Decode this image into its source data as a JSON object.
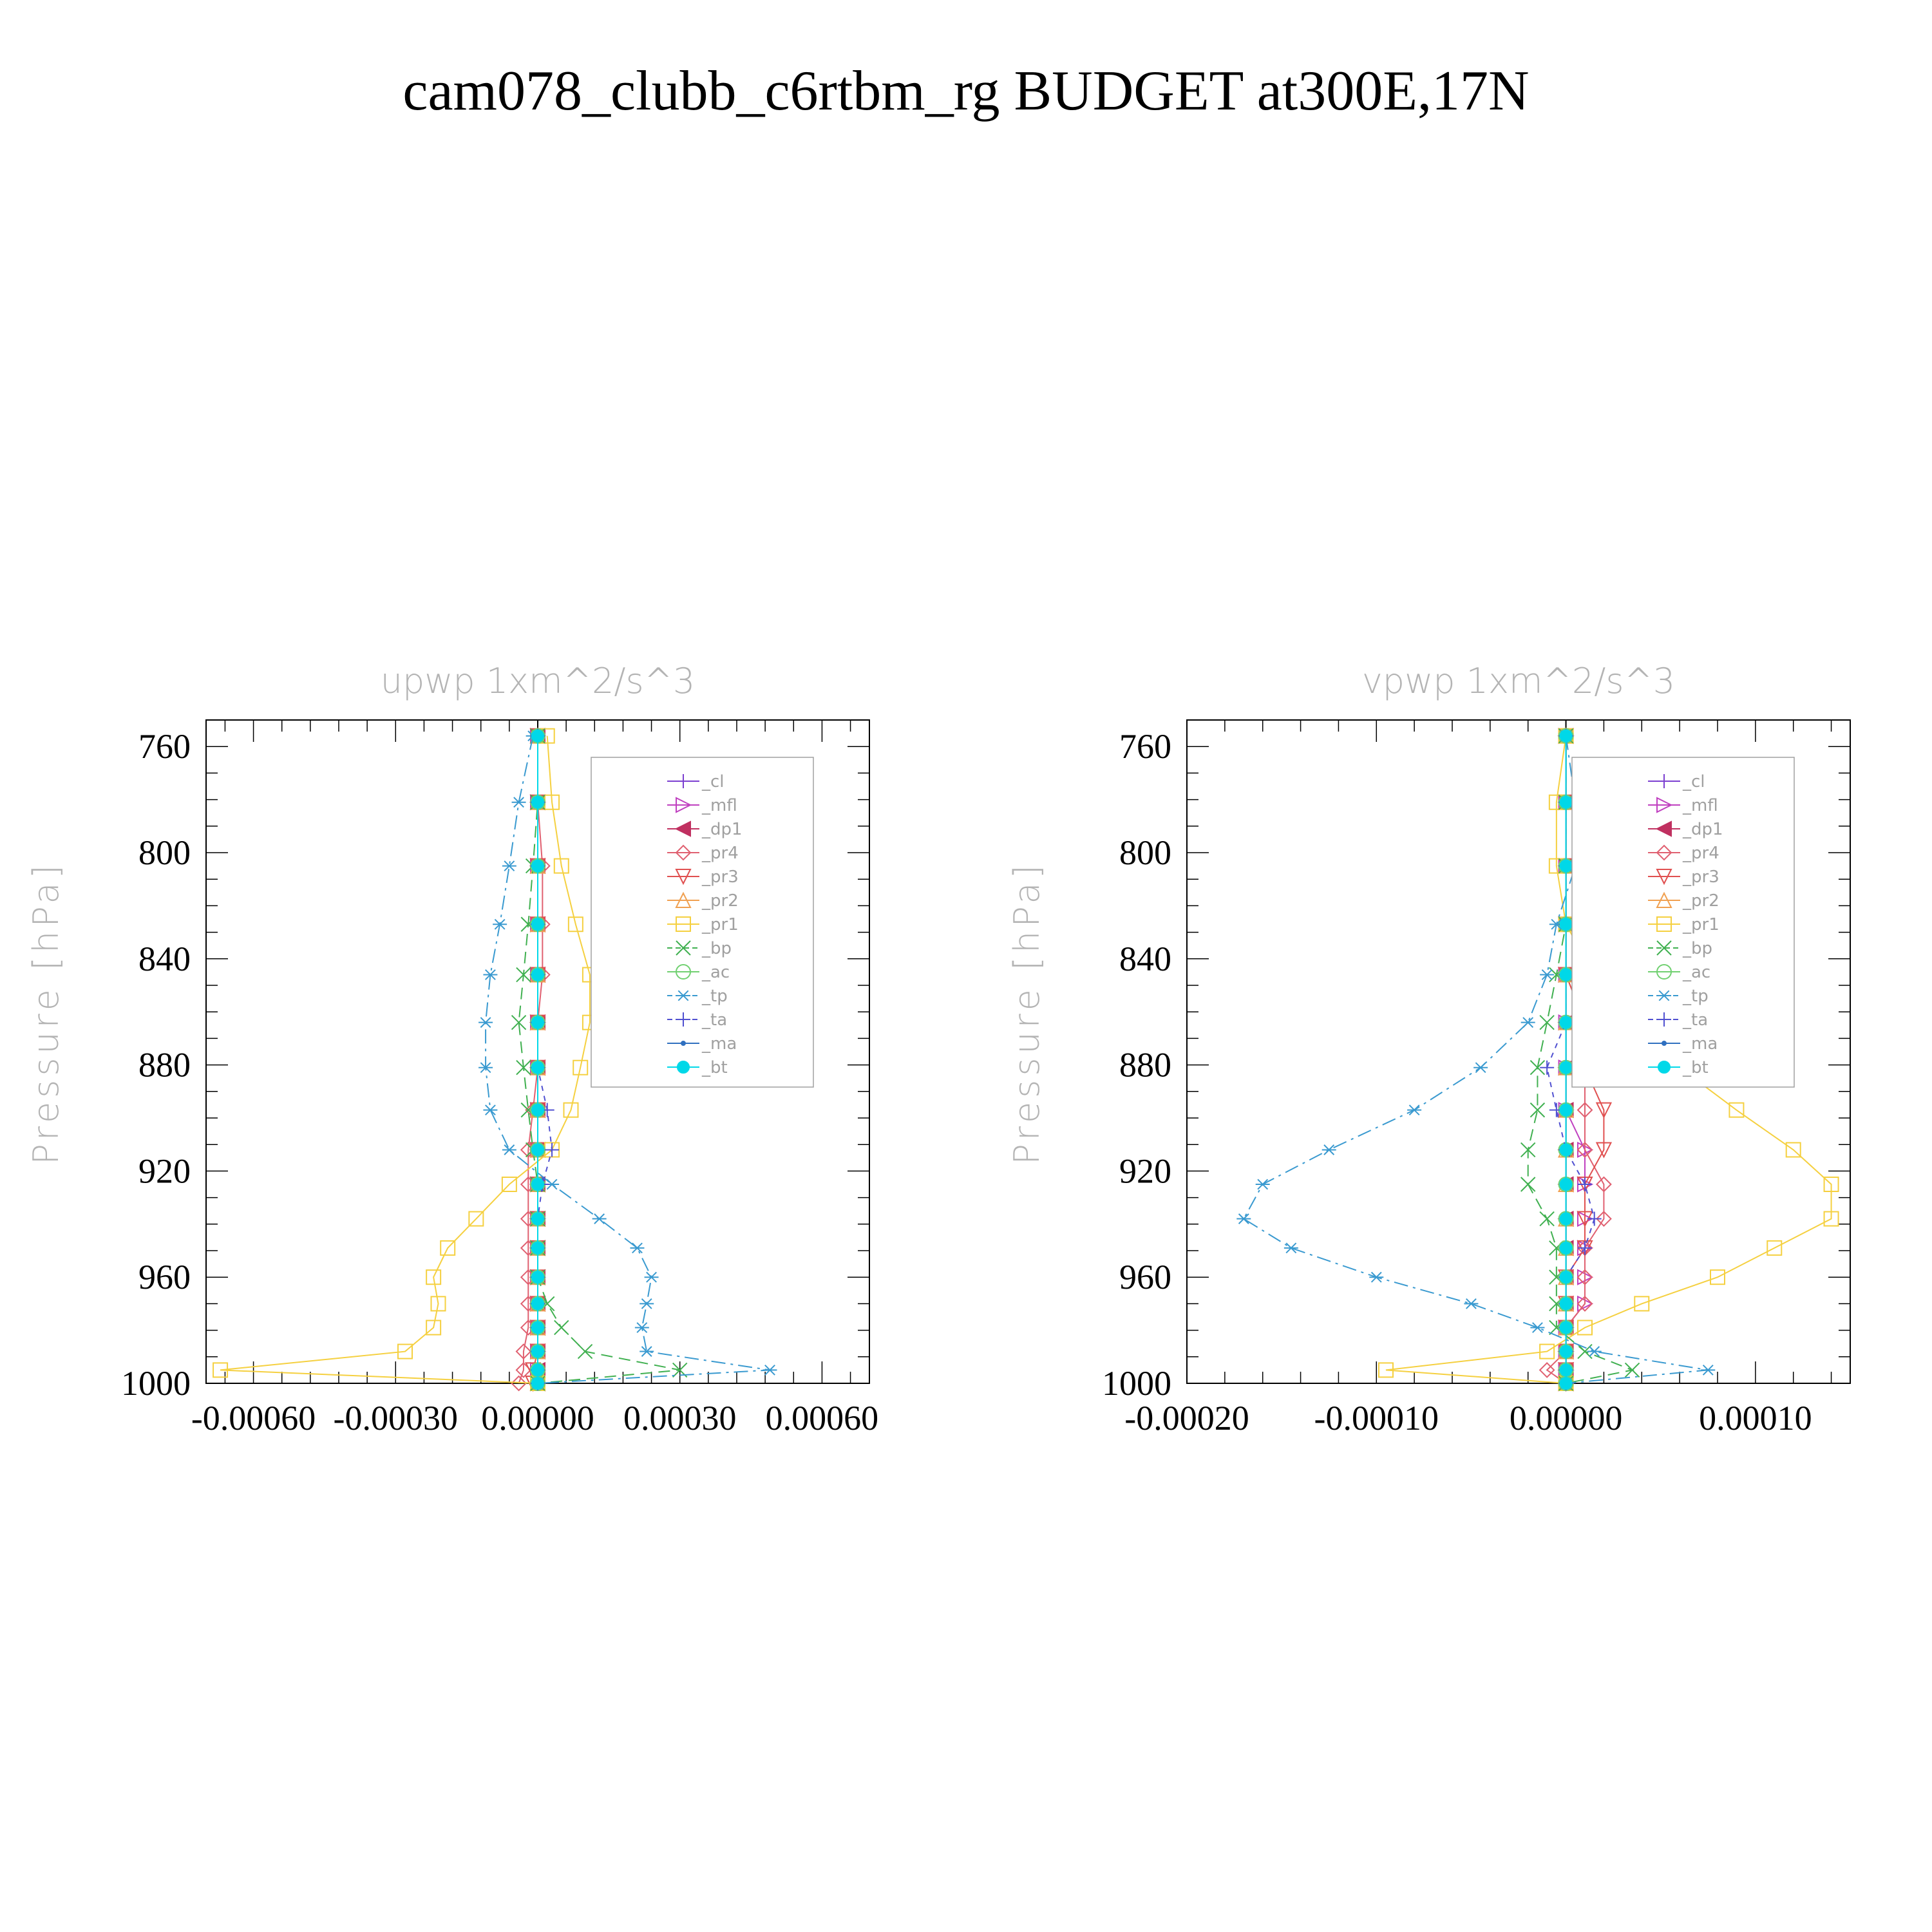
{
  "figure": {
    "title": "cam078_clubb_c6rtbm_rg  BUDGET at300E,17N"
  },
  "chart_data": [
    {
      "type": "line",
      "title": "upwp   1xm^2/s^3",
      "ylabel": "Pressure [hPa]",
      "xlabel": "",
      "xlim": [
        -0.0007,
        0.0007
      ],
      "ylim": [
        1000,
        750
      ],
      "yticks": [
        760,
        800,
        840,
        880,
        920,
        960,
        1000
      ],
      "xticks": [
        -0.0006,
        -0.0003,
        0.0,
        0.0003,
        0.0006
      ],
      "xtick_labels": [
        "-0.00060",
        "-0.00030",
        "0.00000",
        "0.00030",
        "0.00060"
      ],
      "ytick_labels": [
        "760",
        "800",
        "840",
        "880",
        "920",
        "960",
        "1000"
      ],
      "legend_position": "top-right",
      "y": [
        756,
        781,
        805,
        827,
        846,
        864,
        881,
        897,
        912,
        925,
        938,
        949,
        960,
        970,
        979,
        988,
        995,
        1000
      ],
      "series": [
        {
          "name": "_cl",
          "color": "#7b3fd0",
          "marker": "plus",
          "dash": "",
          "values": [
            0,
            0,
            0,
            0,
            0,
            0,
            0,
            0,
            0,
            0,
            0,
            0,
            0,
            0,
            0,
            0,
            0,
            0
          ]
        },
        {
          "name": "_mfl",
          "color": "#c040c0",
          "marker": "tri-right",
          "dash": "",
          "values": [
            0,
            0,
            0,
            0,
            0,
            0,
            0,
            0,
            0,
            0,
            0,
            0,
            0,
            0,
            0,
            0,
            0,
            0
          ]
        },
        {
          "name": "_dp1",
          "color": "#c03060",
          "marker": "tri-left",
          "dash": "",
          "values": [
            0,
            0,
            0,
            0,
            0,
            0,
            0,
            0,
            0,
            0,
            0,
            0,
            0,
            0,
            0,
            0,
            0,
            0
          ]
        },
        {
          "name": "_pr4",
          "color": "#e06070",
          "marker": "diamond",
          "dash": "",
          "values": [
            0,
            0,
            1e-05,
            1e-05,
            1e-05,
            0,
            0,
            -1e-05,
            -2e-05,
            -2e-05,
            -2e-05,
            -2e-05,
            -2e-05,
            -2e-05,
            -2e-05,
            -3e-05,
            -3e-05,
            -4e-05
          ]
        },
        {
          "name": "_pr3",
          "color": "#e05050",
          "marker": "tri-down",
          "dash": "",
          "values": [
            0,
            0,
            0,
            0,
            0,
            0,
            0,
            0,
            0,
            0,
            0,
            0,
            0,
            0,
            0,
            0,
            -1e-05,
            -1e-05
          ]
        },
        {
          "name": "_pr2",
          "color": "#f0a050",
          "marker": "tri-up",
          "dash": "",
          "values": [
            0,
            0,
            0,
            0,
            0,
            0,
            0,
            0,
            0,
            0,
            0,
            0,
            0,
            0,
            0,
            0,
            0,
            0
          ]
        },
        {
          "name": "_pr1",
          "color": "#f5d040",
          "marker": "square",
          "dash": "",
          "values": [
            2e-05,
            3e-05,
            5e-05,
            8e-05,
            0.00011,
            0.00011,
            9e-05,
            7e-05,
            3e-05,
            -6e-05,
            -0.00013,
            -0.00019,
            -0.00022,
            -0.00021,
            -0.00022,
            -0.00028,
            -0.00067,
            0.0
          ]
        },
        {
          "name": "_bp",
          "color": "#40b050",
          "marker": "x",
          "dash": "18,10",
          "values": [
            0,
            0,
            -1e-05,
            -2e-05,
            -3e-05,
            -4e-05,
            -3e-05,
            -2e-05,
            -1e-05,
            0,
            0,
            0,
            0,
            2e-05,
            5e-05,
            0.0001,
            0.0003,
            0.0
          ]
        },
        {
          "name": "_ac",
          "color": "#70d070",
          "marker": "circle",
          "dash": "",
          "values": [
            0,
            0,
            0,
            0,
            0,
            0,
            0,
            0,
            0,
            0,
            0,
            0,
            0,
            0,
            0,
            0,
            0,
            0
          ]
        },
        {
          "name": "_tp",
          "color": "#3a9ad0",
          "marker": "asterisk",
          "dash": "22,8,4,8",
          "values": [
            -1e-05,
            -4e-05,
            -6e-05,
            -8e-05,
            -0.0001,
            -0.00011,
            -0.00011,
            -0.0001,
            -6e-05,
            3e-05,
            0.00013,
            0.00021,
            0.00024,
            0.00023,
            0.00022,
            0.00023,
            0.00049,
            0.0
          ]
        },
        {
          "name": "_ta",
          "color": "#5050d0",
          "marker": "plus",
          "dash": "8,8",
          "values": [
            0,
            0,
            0,
            0,
            0,
            0,
            0,
            2e-05,
            3e-05,
            1e-05,
            0,
            0,
            0,
            0,
            0,
            0,
            0,
            0
          ]
        },
        {
          "name": "_ma",
          "color": "#3070c0",
          "marker": "dot",
          "dash": "",
          "values": [
            0,
            0,
            0,
            0,
            0,
            0,
            0,
            0,
            0,
            0,
            0,
            0,
            0,
            0,
            0,
            0,
            0,
            0
          ]
        },
        {
          "name": "_bt",
          "color": "#00d8e8",
          "marker": "bigdot",
          "dash": "",
          "values": [
            0,
            0,
            0,
            0,
            0,
            0,
            0,
            0,
            0,
            0,
            0,
            0,
            0,
            0,
            0,
            0,
            0,
            0
          ]
        }
      ]
    },
    {
      "type": "line",
      "title": "vpwp   1xm^2/s^3",
      "ylabel": "Pressure [hPa]",
      "xlabel": "",
      "xlim": [
        -0.0002,
        0.00015
      ],
      "ylim": [
        1000,
        750
      ],
      "yticks": [
        760,
        800,
        840,
        880,
        920,
        960,
        1000
      ],
      "xticks": [
        -0.0002,
        -0.0001,
        0.0,
        0.0001
      ],
      "xtick_labels": [
        "-0.00020",
        "-0.00010",
        "0.00000",
        "0.00010"
      ],
      "ytick_labels": [
        "760",
        "800",
        "840",
        "880",
        "920",
        "960",
        "1000"
      ],
      "legend_position": "top-right",
      "y": [
        756,
        781,
        805,
        827,
        846,
        864,
        881,
        897,
        912,
        925,
        938,
        949,
        960,
        970,
        979,
        988,
        995,
        1000
      ],
      "series": [
        {
          "name": "_cl",
          "color": "#7b3fd0",
          "marker": "plus",
          "dash": "",
          "values": [
            0,
            0,
            0,
            0,
            0,
            0,
            0,
            0,
            0,
            0,
            0,
            0,
            0,
            0,
            0,
            0,
            0,
            0
          ]
        },
        {
          "name": "_mfl",
          "color": "#c040c0",
          "marker": "tri-right",
          "dash": "",
          "values": [
            0,
            0,
            0,
            0,
            0,
            0,
            0,
            0,
            1e-05,
            1e-05,
            1e-05,
            1e-05,
            1e-05,
            1e-05,
            0,
            0,
            0,
            0
          ]
        },
        {
          "name": "_dp1",
          "color": "#c03060",
          "marker": "tri-left",
          "dash": "",
          "values": [
            0,
            0,
            0,
            0,
            0,
            0,
            0,
            0,
            0,
            0,
            0,
            0,
            0,
            0,
            0,
            0,
            0,
            0
          ]
        },
        {
          "name": "_pr4",
          "color": "#e06070",
          "marker": "diamond",
          "dash": "",
          "values": [
            0,
            0,
            0,
            0,
            0,
            1e-05,
            1e-05,
            1e-05,
            1e-05,
            2e-05,
            2e-05,
            1e-05,
            1e-05,
            1e-05,
            0,
            0,
            -1e-05,
            0
          ]
        },
        {
          "name": "_pr3",
          "color": "#e05050",
          "marker": "tri-down",
          "dash": "",
          "values": [
            0,
            0,
            0,
            0,
            0,
            1e-05,
            1e-05,
            2e-05,
            2e-05,
            1e-05,
            1e-05,
            1e-05,
            0,
            0,
            0,
            0,
            0,
            0
          ]
        },
        {
          "name": "_pr2",
          "color": "#f0a050",
          "marker": "tri-up",
          "dash": "",
          "values": [
            0,
            0,
            0,
            0,
            0,
            0,
            0,
            0,
            0,
            0,
            0,
            0,
            0,
            0,
            0,
            0,
            0,
            0
          ]
        },
        {
          "name": "_pr1",
          "color": "#f5d040",
          "marker": "square",
          "dash": "",
          "values": [
            0,
            -5e-06,
            -5e-06,
            0,
            1.5e-05,
            3.5e-05,
            6e-05,
            9e-05,
            0.00012,
            0.00014,
            0.00014,
            0.00011,
            8e-05,
            4e-05,
            1e-05,
            -1e-05,
            -9.5e-05,
            0
          ]
        },
        {
          "name": "_bp",
          "color": "#40b050",
          "marker": "x",
          "dash": "18,10",
          "values": [
            0,
            0,
            0,
            0,
            -5e-06,
            -1e-05,
            -1.5e-05,
            -1.5e-05,
            -2e-05,
            -2e-05,
            -1e-05,
            -5e-06,
            -5e-06,
            -5e-06,
            -5e-06,
            1e-05,
            3.5e-05,
            0
          ]
        },
        {
          "name": "_ac",
          "color": "#70d070",
          "marker": "circle",
          "dash": "",
          "values": [
            0,
            0,
            0,
            0,
            0,
            0,
            0,
            0,
            0,
            0,
            0,
            0,
            0,
            0,
            0,
            0,
            0,
            0
          ]
        },
        {
          "name": "_tp",
          "color": "#3a9ad0",
          "marker": "asterisk",
          "dash": "22,8,4,8",
          "values": [
            0,
            5e-06,
            5e-06,
            -5e-06,
            -1e-05,
            -2e-05,
            -4.5e-05,
            -8e-05,
            -0.000125,
            -0.00016,
            -0.00017,
            -0.000145,
            -0.0001,
            -5e-05,
            -1.5e-05,
            1.5e-05,
            7.5e-05,
            0
          ]
        },
        {
          "name": "_ta",
          "color": "#5050d0",
          "marker": "plus",
          "dash": "8,8",
          "values": [
            0,
            0,
            0,
            0,
            0,
            0,
            -1e-05,
            -5e-06,
            0,
            1e-05,
            1.5e-05,
            1e-05,
            0,
            0,
            0,
            0,
            0,
            0
          ]
        },
        {
          "name": "_ma",
          "color": "#3070c0",
          "marker": "dot",
          "dash": "",
          "values": [
            0,
            0,
            0,
            0,
            0,
            0,
            0,
            0,
            0,
            0,
            0,
            0,
            0,
            0,
            0,
            0,
            0,
            0
          ]
        },
        {
          "name": "_bt",
          "color": "#00d8e8",
          "marker": "bigdot",
          "dash": "",
          "values": [
            0,
            0,
            0,
            0,
            0,
            0,
            0,
            0,
            0,
            0,
            0,
            0,
            0,
            0,
            0,
            0,
            0,
            0
          ]
        }
      ]
    }
  ]
}
